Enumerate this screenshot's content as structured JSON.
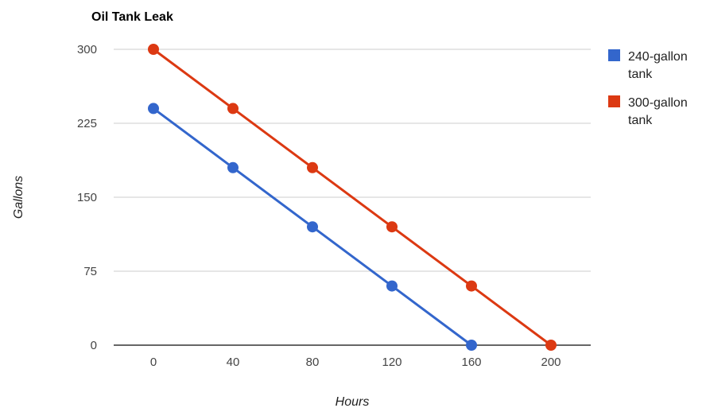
{
  "chart_data": {
    "type": "line",
    "title": "Oil Tank Leak",
    "xlabel": "Hours",
    "ylabel": "Gallons",
    "x": [
      0,
      40,
      80,
      120,
      160,
      200
    ],
    "x_ticks": [
      "0",
      "40",
      "80",
      "120",
      "160",
      "200"
    ],
    "y_ticks": [
      "0",
      "75",
      "150",
      "225",
      "300"
    ],
    "xlim": [
      0,
      200
    ],
    "ylim": [
      0,
      300
    ],
    "grid": true,
    "legend_position": "right",
    "series": [
      {
        "name_lines": [
          "240-gallon",
          "tank"
        ],
        "color": "#3366cc",
        "x": [
          0,
          40,
          80,
          120,
          160
        ],
        "values": [
          240,
          180,
          120,
          60,
          0
        ]
      },
      {
        "name_lines": [
          "300-gallon",
          "tank"
        ],
        "color": "#dc3912",
        "x": [
          0,
          40,
          80,
          120,
          160,
          200
        ],
        "values": [
          300,
          240,
          180,
          120,
          60,
          0
        ]
      }
    ]
  }
}
